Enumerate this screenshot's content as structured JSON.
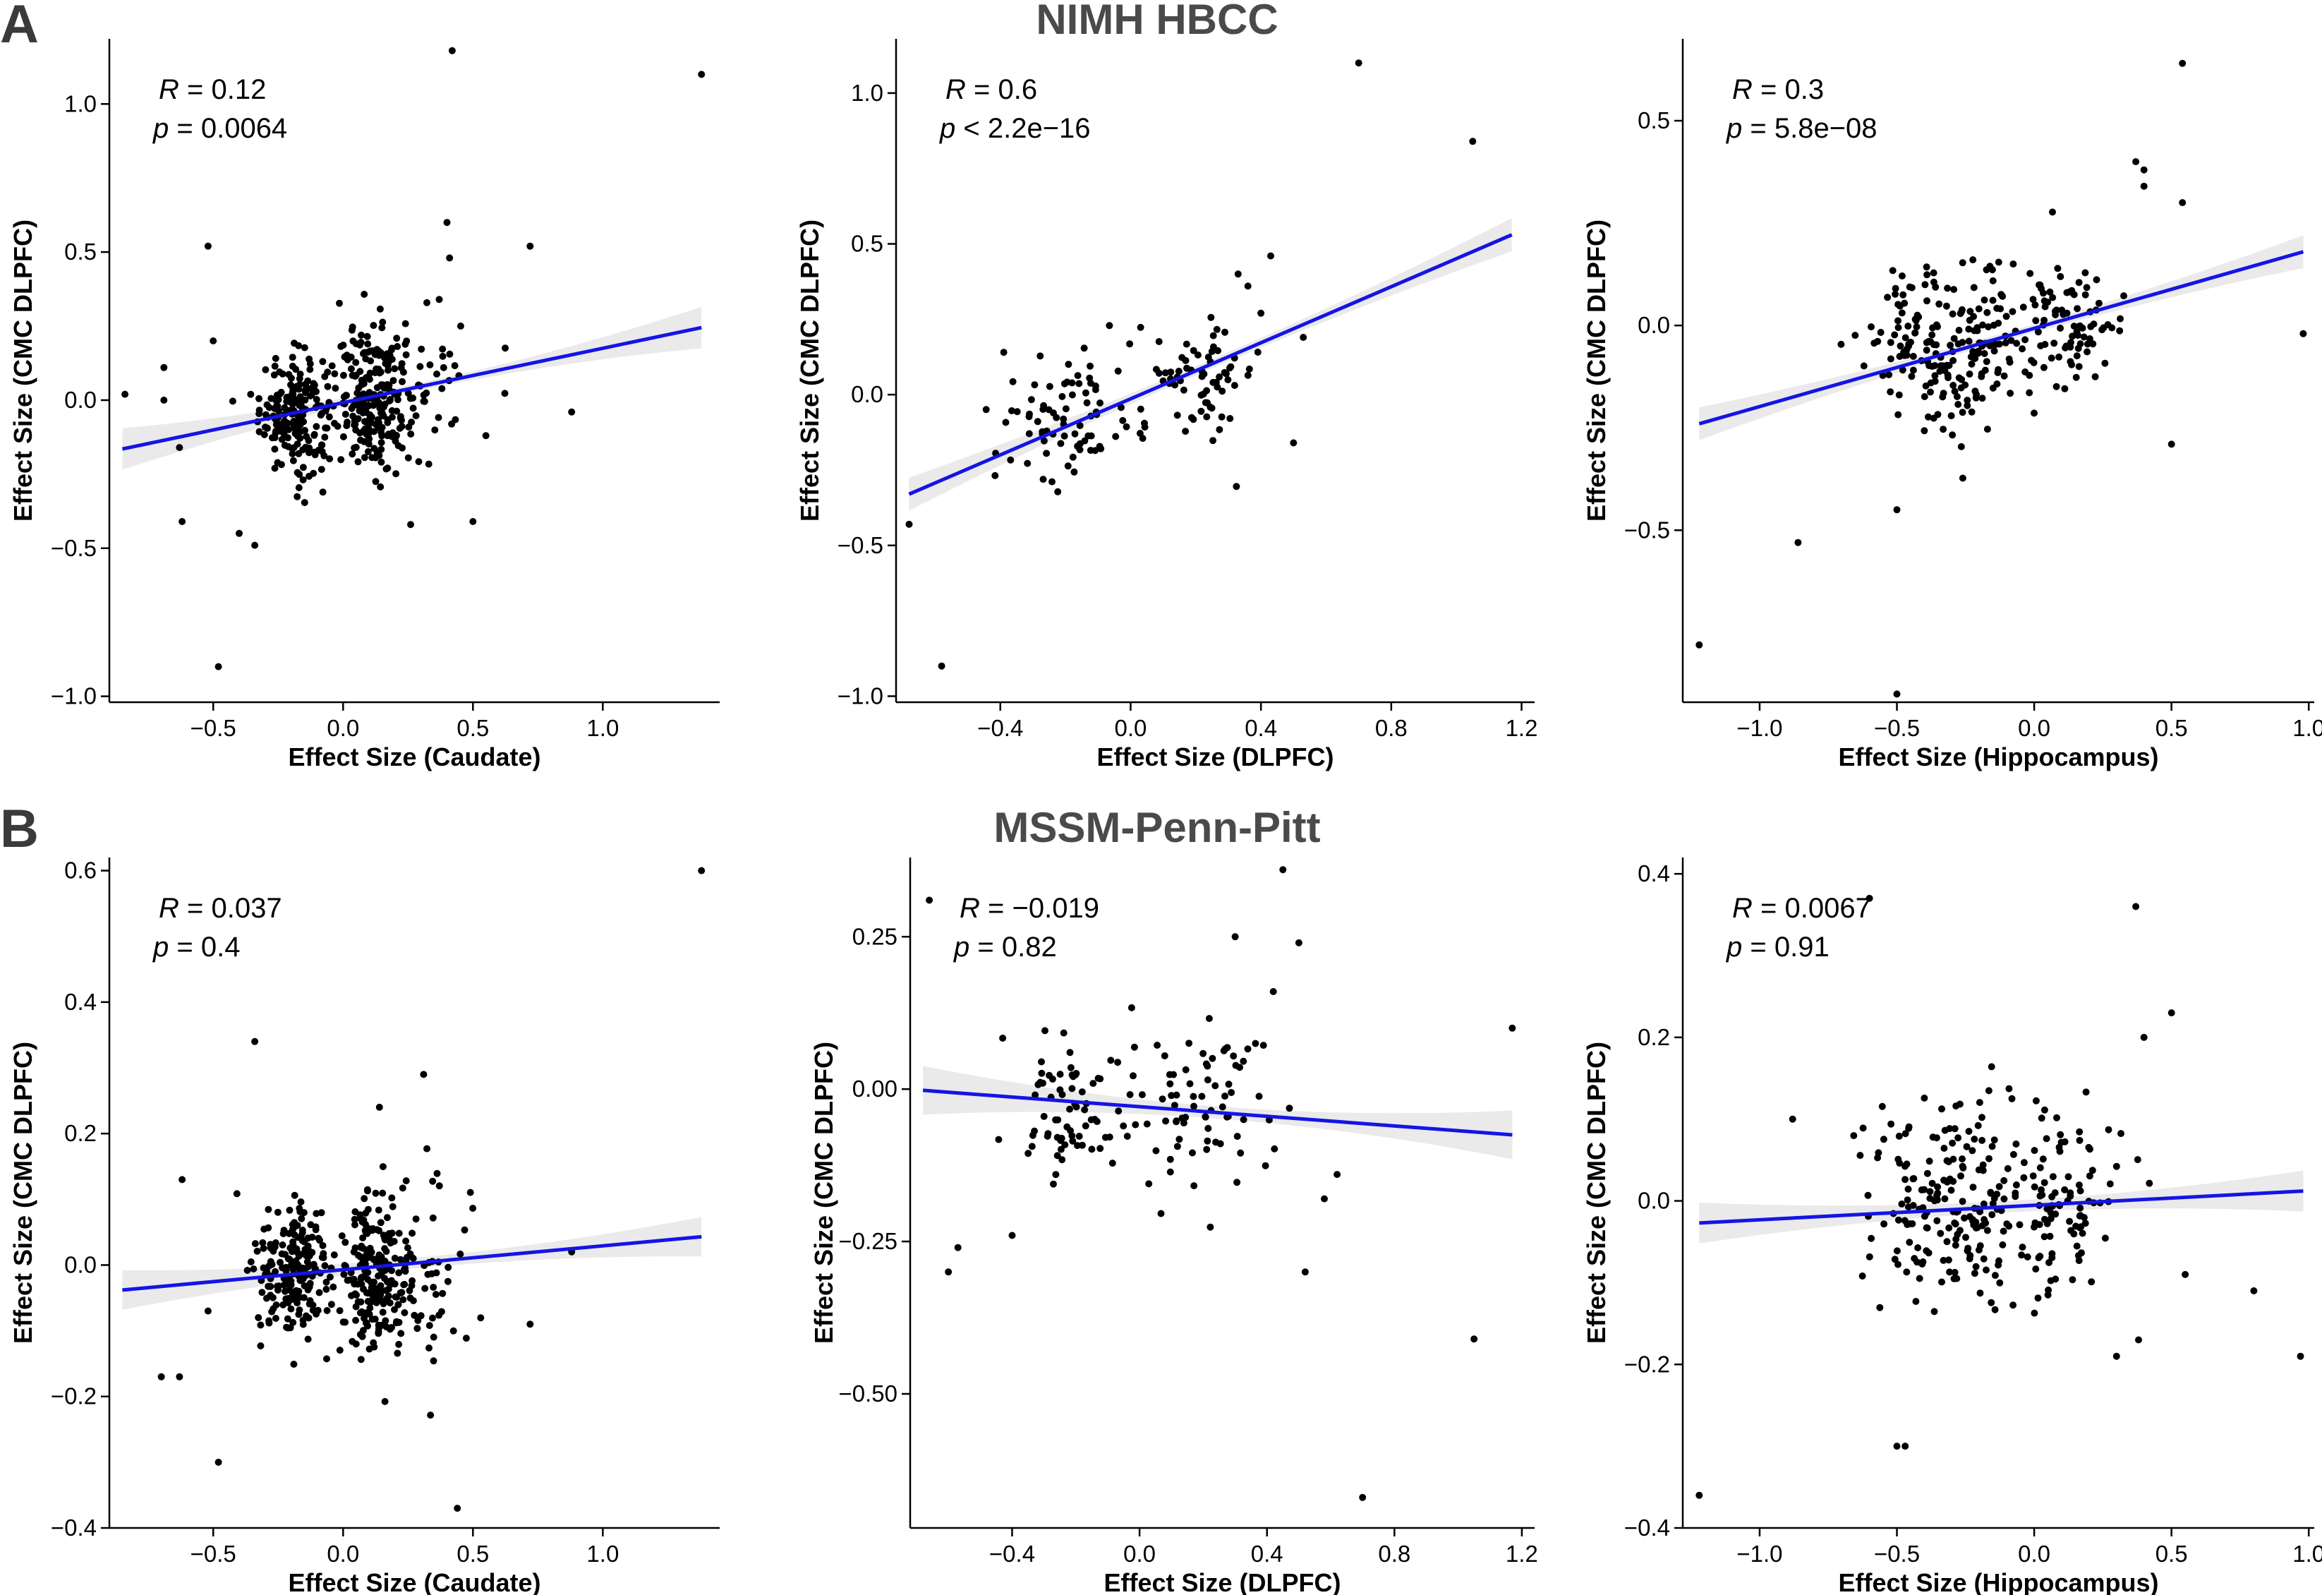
{
  "figure": {
    "cohorts": [
      {
        "letter": "A",
        "title": "NIMH HBCC"
      },
      {
        "letter": "B",
        "title": "MSSM-Penn-Pitt"
      }
    ],
    "colors": {
      "fit_line": "#1414e6",
      "band": "#bdbdbd",
      "points": "#000000"
    }
  },
  "chart_data": [
    {
      "type": "scatter",
      "cohort": "NIMH HBCC",
      "xlabel": "Effect Size (Caudate)",
      "ylabel": "Effect Size (CMC DLPFC)",
      "xlim": [
        -0.9,
        1.45
      ],
      "ylim": [
        -1.02,
        1.22
      ],
      "xticks": [
        -0.5,
        0.0,
        0.5,
        1.0
      ],
      "xtick_labels": [
        "−0.5",
        "0.0",
        "0.5",
        "1.0"
      ],
      "yticks": [
        -1.0,
        -0.5,
        0.0,
        0.5,
        1.0
      ],
      "ytick_labels": [
        "−1.0",
        "−0.5",
        "0.0",
        "0.5",
        "1.0"
      ],
      "stats": {
        "R": "= 0.12",
        "p": "= 0.0064"
      },
      "fit": {
        "x0": -0.85,
        "y0": -0.165,
        "x1": 1.38,
        "y1": 0.245,
        "band_ends": 0.07,
        "band_mid": 0.012
      },
      "clusters": [
        {
          "cx": -0.18,
          "cy": -0.04,
          "sx": 0.07,
          "sy": 0.1,
          "n": 200
        },
        {
          "cx": 0.12,
          "cy": 0.0,
          "sx": 0.07,
          "sy": 0.12,
          "n": 210
        },
        {
          "cx": 0.3,
          "cy": 0.04,
          "sx": 0.12,
          "sy": 0.12,
          "n": 45
        }
      ],
      "outliers": [
        [
          -0.84,
          0.02
        ],
        [
          -0.69,
          0.11
        ],
        [
          -0.69,
          0.0
        ],
        [
          -0.63,
          -0.16
        ],
        [
          -0.62,
          -0.41
        ],
        [
          -0.52,
          0.52
        ],
        [
          -0.5,
          0.2
        ],
        [
          -0.48,
          -0.9
        ],
        [
          -0.4,
          -0.45
        ],
        [
          -0.34,
          -0.49
        ],
        [
          0.42,
          1.18
        ],
        [
          0.4,
          0.6
        ],
        [
          0.41,
          0.48
        ],
        [
          0.37,
          0.34
        ],
        [
          0.72,
          0.52
        ],
        [
          0.88,
          -0.04
        ],
        [
          1.38,
          1.1
        ],
        [
          0.26,
          -0.42
        ],
        [
          0.5,
          -0.41
        ],
        [
          0.55,
          -0.12
        ]
      ]
    },
    {
      "type": "scatter",
      "cohort": "NIMH HBCC",
      "xlabel": "Effect Size (DLPFC)",
      "ylabel": "Effect Size (CMC DLPFC)",
      "xlim": [
        -0.72,
        1.24
      ],
      "ylim": [
        -1.02,
        1.18
      ],
      "xticks": [
        -0.4,
        0.0,
        0.4,
        0.8,
        1.2
      ],
      "xtick_labels": [
        "−0.4",
        "0.0",
        "0.4",
        "0.8",
        "1.2"
      ],
      "yticks": [
        -1.0,
        -0.5,
        0.0,
        0.5,
        1.0
      ],
      "ytick_labels": [
        "−1.0",
        "−0.5",
        "0.0",
        "0.5",
        "1.0"
      ],
      "stats": {
        "R": "= 0.6",
        "p": "< 2.2e−16"
      },
      "fit": {
        "x0": -0.68,
        "y0": -0.33,
        "x1": 1.17,
        "y1": 0.53,
        "band_ends": 0.055,
        "band_mid": 0.015
      },
      "clusters": [
        {
          "cx": -0.2,
          "cy": -0.08,
          "sx": 0.1,
          "sy": 0.1,
          "n": 75
        },
        {
          "cx": 0.2,
          "cy": 0.05,
          "sx": 0.1,
          "sy": 0.1,
          "n": 75
        }
      ],
      "outliers": [
        [
          -0.68,
          -0.43
        ],
        [
          -0.58,
          -0.9
        ],
        [
          0.7,
          1.1
        ],
        [
          1.05,
          0.84
        ],
        [
          0.43,
          0.46
        ],
        [
          0.53,
          0.19
        ],
        [
          0.4,
          0.27
        ],
        [
          0.5,
          -0.16
        ],
        [
          0.36,
          0.36
        ],
        [
          0.33,
          0.4
        ]
      ]
    },
    {
      "type": "scatter",
      "cohort": "NIMH HBCC",
      "xlabel": "Effect Size (Hippocampus)",
      "ylabel": "Effect Size (CMC DLPFC)",
      "xlim": [
        -1.28,
        1.02
      ],
      "ylim": [
        -0.92,
        0.7
      ],
      "xticks": [
        -1.0,
        -0.5,
        0.0,
        0.5,
        1.0
      ],
      "xtick_labels": [
        "−1.0",
        "−0.5",
        "0.0",
        "0.5",
        "1.0"
      ],
      "yticks": [
        -0.5,
        0.0,
        0.5
      ],
      "ytick_labels": [
        "−0.5",
        "0.0",
        "0.5"
      ],
      "stats": {
        "R": "= 0.3",
        "p": "= 5.8e−08"
      },
      "fit": {
        "x0": -1.22,
        "y0": -0.24,
        "x1": 0.98,
        "y1": 0.18,
        "band_ends": 0.04,
        "band_mid": 0.01
      },
      "clusters": [
        {
          "cx": -0.3,
          "cy": -0.05,
          "sx": 0.15,
          "sy": 0.1,
          "n": 200
        },
        {
          "cx": 0.12,
          "cy": 0.0,
          "sx": 0.1,
          "sy": 0.08,
          "n": 90
        }
      ],
      "outliers": [
        [
          -1.22,
          -0.78
        ],
        [
          -0.86,
          -0.53
        ],
        [
          -0.5,
          -0.9
        ],
        [
          -0.5,
          -0.45
        ],
        [
          0.54,
          0.64
        ],
        [
          0.54,
          0.3
        ],
        [
          0.37,
          0.4
        ],
        [
          0.4,
          0.38
        ],
        [
          0.4,
          0.34
        ],
        [
          0.98,
          -0.02
        ],
        [
          0.5,
          -0.29
        ]
      ]
    },
    {
      "type": "scatter",
      "cohort": "MSSM-Penn-Pitt",
      "xlabel": "Effect Size (Caudate)",
      "ylabel": "Effect Size (CMC DLPFC)",
      "xlim": [
        -0.9,
        1.45
      ],
      "ylim": [
        -0.4,
        0.62
      ],
      "xticks": [
        -0.5,
        0.0,
        0.5,
        1.0
      ],
      "xtick_labels": [
        "−0.5",
        "0.0",
        "0.5",
        "1.0"
      ],
      "yticks": [
        -0.4,
        -0.2,
        0.0,
        0.2,
        0.4,
        0.6
      ],
      "ytick_labels": [
        "−0.4",
        "−0.2",
        "0.0",
        "0.2",
        "0.4",
        "0.6"
      ],
      "stats": {
        "R": "= 0.037",
        "p": "= 0.4"
      },
      "fit": {
        "x0": -0.85,
        "y0": -0.038,
        "x1": 1.38,
        "y1": 0.043,
        "band_ends": 0.03,
        "band_mid": 0.008
      },
      "clusters": [
        {
          "cx": -0.18,
          "cy": -0.01,
          "sx": 0.08,
          "sy": 0.055,
          "n": 200
        },
        {
          "cx": 0.12,
          "cy": -0.01,
          "sx": 0.06,
          "sy": 0.06,
          "n": 200
        },
        {
          "cx": 0.3,
          "cy": -0.02,
          "sx": 0.1,
          "sy": 0.1,
          "n": 60
        }
      ],
      "outliers": [
        [
          -0.48,
          -0.3
        ],
        [
          -0.34,
          0.34
        ],
        [
          0.44,
          -0.37
        ],
        [
          1.38,
          0.6
        ],
        [
          0.31,
          0.29
        ],
        [
          0.14,
          0.24
        ],
        [
          0.88,
          0.02
        ],
        [
          0.72,
          -0.09
        ],
        [
          -0.62,
          0.13
        ],
        [
          -0.7,
          -0.17
        ],
        [
          -0.63,
          -0.17
        ],
        [
          -0.52,
          -0.07
        ]
      ]
    },
    {
      "type": "scatter",
      "cohort": "MSSM-Penn-Pitt",
      "xlabel": "Effect Size (DLPFC)",
      "ylabel": "Effect Size (CMC DLPFC)",
      "xlim": [
        -0.72,
        1.24
      ],
      "ylim": [
        -0.72,
        0.38
      ],
      "xticks": [
        -0.4,
        0.0,
        0.4,
        0.8,
        1.2
      ],
      "xtick_labels": [
        "−0.4",
        "0.0",
        "0.4",
        "0.8",
        "1.2"
      ],
      "yticks": [
        -0.5,
        -0.25,
        0.0,
        0.25
      ],
      "ytick_labels": [
        "−0.50",
        "−0.25",
        "0.00",
        "0.25"
      ],
      "stats": {
        "R": "= −0.019",
        "p": "= 0.82"
      },
      "fit": {
        "x0": -0.68,
        "y0": -0.002,
        "x1": 1.17,
        "y1": -0.075,
        "band_ends": 0.04,
        "band_mid": 0.01
      },
      "clusters": [
        {
          "cx": -0.22,
          "cy": -0.03,
          "sx": 0.1,
          "sy": 0.06,
          "n": 75
        },
        {
          "cx": 0.2,
          "cy": -0.03,
          "sx": 0.1,
          "sy": 0.07,
          "n": 75
        }
      ],
      "outliers": [
        [
          -0.66,
          0.31
        ],
        [
          0.7,
          -0.67
        ],
        [
          1.05,
          -0.41
        ],
        [
          1.17,
          0.1
        ],
        [
          0.45,
          0.36
        ],
        [
          0.5,
          0.24
        ],
        [
          0.42,
          0.16
        ],
        [
          -0.6,
          -0.3
        ],
        [
          -0.57,
          -0.26
        ],
        [
          0.52,
          -0.3
        ],
        [
          0.3,
          0.25
        ],
        [
          0.58,
          -0.18
        ],
        [
          0.62,
          -0.14
        ],
        [
          -0.4,
          -0.24
        ]
      ]
    },
    {
      "type": "scatter",
      "cohort": "MSSM-Penn-Pitt",
      "xlabel": "Effect Size (Hippocampus)",
      "ylabel": "Effect Size (CMC DLPFC)",
      "xlim": [
        -1.28,
        1.02
      ],
      "ylim": [
        -0.4,
        0.42
      ],
      "xticks": [
        -1.0,
        -0.5,
        0.0,
        0.5,
        1.0
      ],
      "xtick_labels": [
        "−1.0",
        "−0.5",
        "0.0",
        "0.5",
        "1.0"
      ],
      "yticks": [
        -0.4,
        -0.2,
        0.0,
        0.2,
        0.4
      ],
      "ytick_labels": [
        "−0.4",
        "−0.2",
        "0.0",
        "0.2",
        "0.4"
      ],
      "stats": {
        "R": "= 0.0067",
        "p": "= 0.91"
      },
      "fit": {
        "x0": -1.22,
        "y0": -0.027,
        "x1": 0.98,
        "y1": 0.012,
        "band_ends": 0.025,
        "band_mid": 0.007
      },
      "clusters": [
        {
          "cx": -0.3,
          "cy": 0.0,
          "sx": 0.15,
          "sy": 0.07,
          "n": 200
        },
        {
          "cx": 0.12,
          "cy": 0.0,
          "sx": 0.1,
          "sy": 0.06,
          "n": 90
        }
      ],
      "outliers": [
        [
          -1.22,
          -0.36
        ],
        [
          -0.6,
          0.37
        ],
        [
          -0.5,
          -0.3
        ],
        [
          -0.47,
          -0.3
        ],
        [
          0.37,
          0.36
        ],
        [
          0.5,
          0.23
        ],
        [
          0.97,
          -0.19
        ],
        [
          0.8,
          -0.11
        ],
        [
          -0.88,
          0.1
        ],
        [
          0.4,
          0.2
        ],
        [
          0.55,
          -0.09
        ],
        [
          0.3,
          -0.19
        ],
        [
          0.38,
          -0.17
        ]
      ]
    }
  ]
}
